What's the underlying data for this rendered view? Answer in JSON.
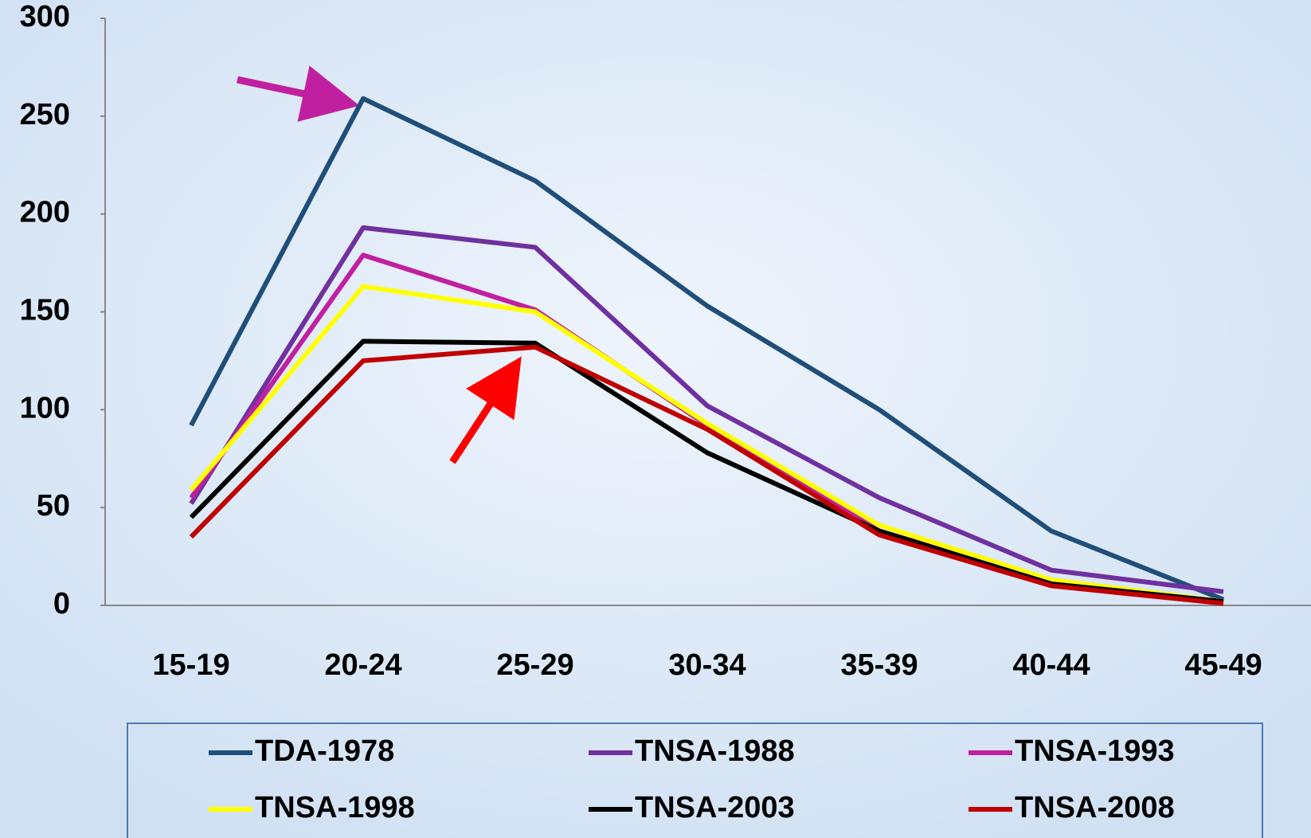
{
  "chart_data": {
    "type": "line",
    "categories": [
      "15-19",
      "20-24",
      "25-29",
      "30-34",
      "35-39",
      "40-44",
      "45-49"
    ],
    "series": [
      {
        "name": "TDA-1978",
        "color": "#1f4e79",
        "values": [
          92,
          259,
          217,
          153,
          100,
          38,
          3
        ]
      },
      {
        "name": "TNSA-1988",
        "color": "#7030a0",
        "values": [
          52,
          193,
          183,
          102,
          55,
          18,
          7
        ]
      },
      {
        "name": "TNSA-1993",
        "color": "#c020a0",
        "values": [
          55,
          179,
          151,
          92,
          38,
          12,
          2
        ]
      },
      {
        "name": "TNSA-1998",
        "color": "#ffff00",
        "values": [
          59,
          163,
          150,
          93,
          41,
          13,
          2
        ]
      },
      {
        "name": "TNSA-2003",
        "color": "#000000",
        "values": [
          45,
          135,
          134,
          78,
          38,
          11,
          2
        ]
      },
      {
        "name": "TNSA-2008",
        "color": "#c00000",
        "values": [
          35,
          125,
          132,
          90,
          36,
          10,
          1
        ]
      }
    ],
    "ylim": [
      0,
      300
    ],
    "yticks": [
      0,
      50,
      100,
      150,
      200,
      250,
      300
    ],
    "grid": false
  }
}
